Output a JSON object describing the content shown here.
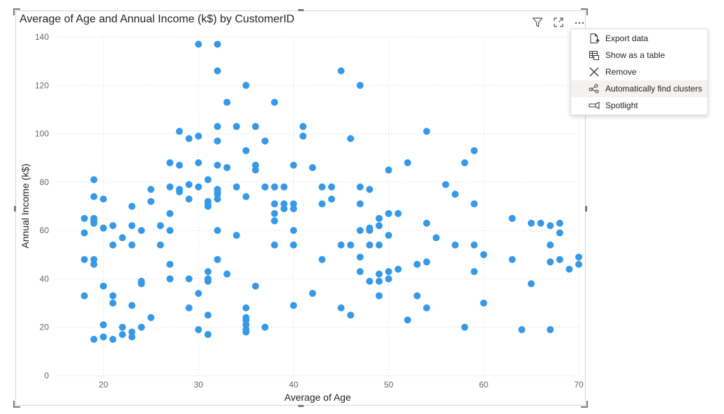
{
  "visual": {
    "title": "Average of Age and Annual Income (k$) by CustomerID",
    "header_icons": [
      "filter-icon",
      "focus-mode-icon",
      "more-options-icon"
    ]
  },
  "context_menu": {
    "items": [
      {
        "label": "Export data",
        "icon": "export-data-icon"
      },
      {
        "label": "Show as a table",
        "icon": "show-table-icon"
      },
      {
        "label": "Remove",
        "icon": "remove-icon"
      },
      {
        "label": "Automatically find clusters",
        "icon": "clusters-icon",
        "highlighted": true
      },
      {
        "label": "Spotlight",
        "icon": "spotlight-icon"
      }
    ]
  },
  "chart_data": {
    "type": "scatter",
    "title": "Average of Age and Annual Income (k$) by CustomerID",
    "xlabel": "Average of Age",
    "ylabel": "Annual Income (k$)",
    "xlim": [
      15,
      70
    ],
    "ylim": [
      0,
      140
    ],
    "xticks": [
      20,
      30,
      40,
      50,
      60,
      70
    ],
    "yticks": [
      0,
      20,
      40,
      60,
      80,
      100,
      120,
      140
    ],
    "grid": true,
    "color": "#3599e8",
    "points": [
      [
        18,
        65
      ],
      [
        18,
        59
      ],
      [
        18,
        48
      ],
      [
        18,
        33
      ],
      [
        19,
        81
      ],
      [
        19,
        74
      ],
      [
        19,
        65
      ],
      [
        19,
        64
      ],
      [
        19,
        63
      ],
      [
        19,
        48
      ],
      [
        19,
        46
      ],
      [
        19,
        15
      ],
      [
        20,
        73
      ],
      [
        20,
        61
      ],
      [
        20,
        37
      ],
      [
        20,
        21
      ],
      [
        20,
        16
      ],
      [
        21,
        62
      ],
      [
        21,
        54
      ],
      [
        21,
        33
      ],
      [
        21,
        30
      ],
      [
        21,
        15
      ],
      [
        22,
        57
      ],
      [
        22,
        20
      ],
      [
        22,
        17
      ],
      [
        23,
        70
      ],
      [
        23,
        62
      ],
      [
        23,
        54
      ],
      [
        23,
        29
      ],
      [
        23,
        18
      ],
      [
        23,
        16
      ],
      [
        24,
        60
      ],
      [
        24,
        39
      ],
      [
        24,
        38
      ],
      [
        24,
        20
      ],
      [
        25,
        77
      ],
      [
        25,
        72
      ],
      [
        25,
        24
      ],
      [
        26,
        62
      ],
      [
        26,
        54
      ],
      [
        27,
        88
      ],
      [
        27,
        78
      ],
      [
        27,
        67
      ],
      [
        27,
        60
      ],
      [
        27,
        46
      ],
      [
        27,
        40
      ],
      [
        28,
        101
      ],
      [
        28,
        87
      ],
      [
        28,
        77
      ],
      [
        28,
        76
      ],
      [
        29,
        98
      ],
      [
        29,
        79
      ],
      [
        29,
        73
      ],
      [
        29,
        40
      ],
      [
        29,
        28
      ],
      [
        30,
        137
      ],
      [
        30,
        99
      ],
      [
        30,
        88
      ],
      [
        30,
        78
      ],
      [
        30,
        34
      ],
      [
        30,
        19
      ],
      [
        31,
        81
      ],
      [
        31,
        72
      ],
      [
        31,
        71
      ],
      [
        31,
        70
      ],
      [
        31,
        43
      ],
      [
        31,
        40
      ],
      [
        31,
        39
      ],
      [
        31,
        25
      ],
      [
        31,
        17
      ],
      [
        32,
        137
      ],
      [
        32,
        126
      ],
      [
        32,
        103
      ],
      [
        32,
        97
      ],
      [
        32,
        87
      ],
      [
        32,
        77
      ],
      [
        32,
        76
      ],
      [
        32,
        75
      ],
      [
        32,
        73
      ],
      [
        32,
        60
      ],
      [
        32,
        48
      ],
      [
        33,
        113
      ],
      [
        33,
        86
      ],
      [
        33,
        42
      ],
      [
        34,
        103
      ],
      [
        34,
        78
      ],
      [
        34,
        58
      ],
      [
        35,
        120
      ],
      [
        35,
        93
      ],
      [
        35,
        74
      ],
      [
        35,
        28
      ],
      [
        35,
        24
      ],
      [
        35,
        23
      ],
      [
        35,
        21
      ],
      [
        35,
        19
      ],
      [
        35,
        18
      ],
      [
        36,
        103
      ],
      [
        36,
        87
      ],
      [
        36,
        85
      ],
      [
        36,
        37
      ],
      [
        37,
        97
      ],
      [
        37,
        78
      ],
      [
        37,
        20
      ],
      [
        38,
        113
      ],
      [
        38,
        78
      ],
      [
        38,
        71
      ],
      [
        38,
        67
      ],
      [
        38,
        64
      ],
      [
        38,
        54
      ],
      [
        39,
        78
      ],
      [
        39,
        71
      ],
      [
        39,
        69
      ],
      [
        40,
        87
      ],
      [
        40,
        71
      ],
      [
        40,
        69
      ],
      [
        40,
        60
      ],
      [
        40,
        54
      ],
      [
        40,
        29
      ],
      [
        41,
        103
      ],
      [
        41,
        99
      ],
      [
        42,
        86
      ],
      [
        42,
        34
      ],
      [
        43,
        78
      ],
      [
        43,
        71
      ],
      [
        43,
        48
      ],
      [
        44,
        78
      ],
      [
        44,
        73
      ],
      [
        45,
        126
      ],
      [
        45,
        54
      ],
      [
        45,
        28
      ],
      [
        46,
        98
      ],
      [
        46,
        54
      ],
      [
        46,
        25
      ],
      [
        47,
        120
      ],
      [
        47,
        78
      ],
      [
        47,
        71
      ],
      [
        47,
        60
      ],
      [
        47,
        49
      ],
      [
        47,
        43
      ],
      [
        48,
        77
      ],
      [
        48,
        61
      ],
      [
        48,
        60
      ],
      [
        48,
        54
      ],
      [
        48,
        39
      ],
      [
        49,
        65
      ],
      [
        49,
        62
      ],
      [
        49,
        54
      ],
      [
        49,
        42
      ],
      [
        49,
        39
      ],
      [
        49,
        33
      ],
      [
        50,
        85
      ],
      [
        50,
        67
      ],
      [
        50,
        58
      ],
      [
        50,
        43
      ],
      [
        50,
        40
      ],
      [
        51,
        67
      ],
      [
        51,
        44
      ],
      [
        52,
        88
      ],
      [
        52,
        23
      ],
      [
        53,
        46
      ],
      [
        53,
        33
      ],
      [
        54,
        101
      ],
      [
        54,
        63
      ],
      [
        54,
        47
      ],
      [
        54,
        28
      ],
      [
        55,
        57
      ],
      [
        56,
        79
      ],
      [
        57,
        75
      ],
      [
        57,
        54
      ],
      [
        58,
        88
      ],
      [
        58,
        20
      ],
      [
        59,
        93
      ],
      [
        59,
        71
      ],
      [
        59,
        54
      ],
      [
        59,
        43
      ],
      [
        60,
        50
      ],
      [
        60,
        30
      ],
      [
        63,
        65
      ],
      [
        63,
        48
      ],
      [
        64,
        19
      ],
      [
        65,
        63
      ],
      [
        65,
        38
      ],
      [
        66,
        63
      ],
      [
        67,
        62
      ],
      [
        67,
        54
      ],
      [
        67,
        47
      ],
      [
        67,
        19
      ],
      [
        68,
        63
      ],
      [
        68,
        59
      ],
      [
        68,
        48
      ],
      [
        69,
        44
      ],
      [
        70,
        49
      ],
      [
        70,
        46
      ]
    ]
  }
}
